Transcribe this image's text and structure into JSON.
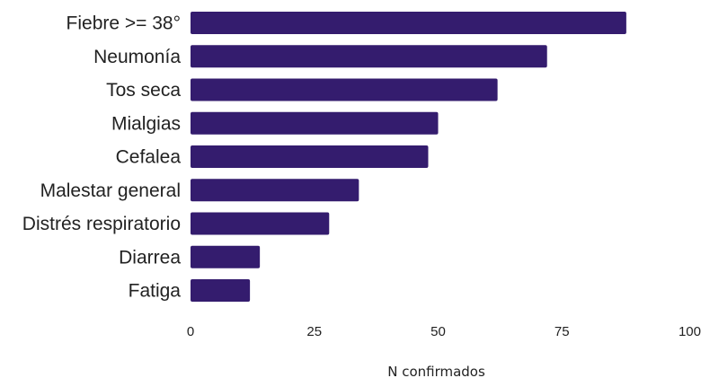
{
  "chart_data": {
    "type": "bar",
    "orientation": "horizontal",
    "categories": [
      "Fiebre >= 38°",
      "Neumonía",
      "Tos seca",
      "Mialgias",
      "Cefalea",
      "Malestar general",
      "Distrés respiratorio",
      "Diarrea",
      "Fatiga"
    ],
    "values": [
      88,
      72,
      62,
      50,
      48,
      34,
      28,
      14,
      12
    ],
    "title": "",
    "xlabel": "N confirmados",
    "ylabel": "",
    "xlim": [
      0,
      100
    ],
    "xticks": [
      0,
      25,
      50,
      75,
      100
    ],
    "grid": false,
    "legend": "none",
    "bar_color": "#341c6e"
  }
}
